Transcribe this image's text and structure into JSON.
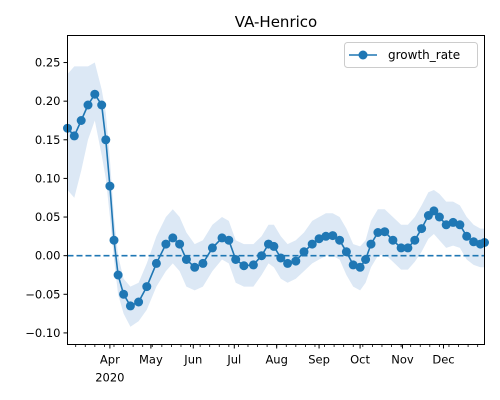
{
  "chart_data": {
    "type": "line",
    "title": "VA-Henrico",
    "xlabel": "",
    "ylabel": "",
    "x_range": [
      "2020-03-01",
      "2020-12-31"
    ],
    "ylim": [
      -0.115,
      0.285
    ],
    "y_ticks": [
      -0.1,
      -0.05,
      0.0,
      0.05,
      0.1,
      0.15,
      0.2,
      0.25
    ],
    "y_tick_labels": [
      "−0.10",
      "−0.05",
      "0.00",
      "0.05",
      "0.10",
      "0.15",
      "0.20",
      "0.25"
    ],
    "x_ticks": [
      {
        "date": "2020-04-01",
        "label": "Apr"
      },
      {
        "date": "2020-05-01",
        "label": "May"
      },
      {
        "date": "2020-06-01",
        "label": "Jun"
      },
      {
        "date": "2020-07-01",
        "label": "Jul"
      },
      {
        "date": "2020-08-01",
        "label": "Aug"
      },
      {
        "date": "2020-09-01",
        "label": "Sep"
      },
      {
        "date": "2020-10-01",
        "label": "Oct"
      },
      {
        "date": "2020-11-01",
        "label": "Nov"
      },
      {
        "date": "2020-12-01",
        "label": "Dec"
      }
    ],
    "x_year_label": "2020",
    "legend": {
      "position": "top-right"
    },
    "grid": false,
    "reference_line": {
      "y": 0.0,
      "style": "dashed",
      "color": "#1f77b4"
    },
    "series": [
      {
        "name": "growth_rate",
        "color": "#1f77b4",
        "band_color": "#dce8f5",
        "marker": "circle",
        "points": [
          {
            "x": "2020-03-01",
            "y": 0.165,
            "lo": 0.085,
            "hi": 0.235
          },
          {
            "x": "2020-03-06",
            "y": 0.155,
            "lo": 0.075,
            "hi": 0.245
          },
          {
            "x": "2020-03-11",
            "y": 0.175,
            "lo": 0.11,
            "hi": 0.245
          },
          {
            "x": "2020-03-16",
            "y": 0.195,
            "lo": 0.15,
            "hi": 0.245
          },
          {
            "x": "2020-03-21",
            "y": 0.209,
            "lo": 0.175,
            "hi": 0.25
          },
          {
            "x": "2020-03-26",
            "y": 0.195,
            "lo": 0.13,
            "hi": 0.215
          },
          {
            "x": "2020-03-29",
            "y": 0.15,
            "lo": 0.1,
            "hi": 0.185
          },
          {
            "x": "2020-04-01",
            "y": 0.09,
            "lo": 0.05,
            "hi": 0.125
          },
          {
            "x": "2020-04-04",
            "y": 0.02,
            "lo": -0.005,
            "hi": 0.05
          },
          {
            "x": "2020-04-07",
            "y": -0.025,
            "lo": -0.05,
            "hi": 0.0
          },
          {
            "x": "2020-04-11",
            "y": -0.05,
            "lo": -0.075,
            "hi": -0.03
          },
          {
            "x": "2020-04-16",
            "y": -0.065,
            "lo": -0.092,
            "hi": -0.04
          },
          {
            "x": "2020-04-22",
            "y": -0.06,
            "lo": -0.085,
            "hi": -0.035
          },
          {
            "x": "2020-04-28",
            "y": -0.04,
            "lo": -0.07,
            "hi": -0.01
          },
          {
            "x": "2020-05-05",
            "y": -0.01,
            "lo": -0.04,
            "hi": 0.025
          },
          {
            "x": "2020-05-12",
            "y": 0.015,
            "lo": -0.02,
            "hi": 0.05
          },
          {
            "x": "2020-05-17",
            "y": 0.023,
            "lo": -0.01,
            "hi": 0.06
          },
          {
            "x": "2020-05-22",
            "y": 0.015,
            "lo": -0.02,
            "hi": 0.05
          },
          {
            "x": "2020-05-27",
            "y": -0.005,
            "lo": -0.04,
            "hi": 0.03
          },
          {
            "x": "2020-06-02",
            "y": -0.015,
            "lo": -0.045,
            "hi": 0.015
          },
          {
            "x": "2020-06-08",
            "y": -0.01,
            "lo": -0.04,
            "hi": 0.02
          },
          {
            "x": "2020-06-15",
            "y": 0.01,
            "lo": -0.02,
            "hi": 0.04
          },
          {
            "x": "2020-06-22",
            "y": 0.023,
            "lo": -0.005,
            "hi": 0.05
          },
          {
            "x": "2020-06-27",
            "y": 0.02,
            "lo": -0.01,
            "hi": 0.045
          },
          {
            "x": "2020-07-02",
            "y": -0.005,
            "lo": -0.035,
            "hi": 0.02
          },
          {
            "x": "2020-07-08",
            "y": -0.013,
            "lo": -0.04,
            "hi": 0.015
          },
          {
            "x": "2020-07-15",
            "y": -0.012,
            "lo": -0.04,
            "hi": 0.015
          },
          {
            "x": "2020-07-21",
            "y": 0.0,
            "lo": -0.025,
            "hi": 0.025
          },
          {
            "x": "2020-07-26",
            "y": 0.015,
            "lo": -0.01,
            "hi": 0.04
          },
          {
            "x": "2020-07-30",
            "y": 0.012,
            "lo": -0.015,
            "hi": 0.04
          },
          {
            "x": "2020-08-04",
            "y": -0.003,
            "lo": -0.03,
            "hi": 0.025
          },
          {
            "x": "2020-08-09",
            "y": -0.01,
            "lo": -0.035,
            "hi": 0.015
          },
          {
            "x": "2020-08-15",
            "y": -0.007,
            "lo": -0.03,
            "hi": 0.02
          },
          {
            "x": "2020-08-21",
            "y": 0.005,
            "lo": -0.02,
            "hi": 0.03
          },
          {
            "x": "2020-08-27",
            "y": 0.015,
            "lo": -0.01,
            "hi": 0.045
          },
          {
            "x": "2020-09-01",
            "y": 0.022,
            "lo": -0.005,
            "hi": 0.05
          },
          {
            "x": "2020-09-06",
            "y": 0.025,
            "lo": 0.0,
            "hi": 0.055
          },
          {
            "x": "2020-09-11",
            "y": 0.026,
            "lo": 0.0,
            "hi": 0.055
          },
          {
            "x": "2020-09-16",
            "y": 0.02,
            "lo": -0.005,
            "hi": 0.05
          },
          {
            "x": "2020-09-21",
            "y": 0.005,
            "lo": -0.025,
            "hi": 0.035
          },
          {
            "x": "2020-09-26",
            "y": -0.012,
            "lo": -0.04,
            "hi": 0.015
          },
          {
            "x": "2020-10-01",
            "y": -0.015,
            "lo": -0.045,
            "hi": 0.012
          },
          {
            "x": "2020-10-05",
            "y": -0.005,
            "lo": -0.035,
            "hi": 0.02
          },
          {
            "x": "2020-10-09",
            "y": 0.015,
            "lo": -0.015,
            "hi": 0.045
          },
          {
            "x": "2020-10-14",
            "y": 0.03,
            "lo": 0.0,
            "hi": 0.06
          },
          {
            "x": "2020-10-19",
            "y": 0.031,
            "lo": 0.002,
            "hi": 0.06
          },
          {
            "x": "2020-10-25",
            "y": 0.02,
            "lo": -0.008,
            "hi": 0.05
          },
          {
            "x": "2020-10-31",
            "y": 0.01,
            "lo": -0.018,
            "hi": 0.04
          },
          {
            "x": "2020-11-05",
            "y": 0.01,
            "lo": -0.018,
            "hi": 0.04
          },
          {
            "x": "2020-11-10",
            "y": 0.02,
            "lo": -0.008,
            "hi": 0.05
          },
          {
            "x": "2020-11-15",
            "y": 0.035,
            "lo": 0.005,
            "hi": 0.065
          },
          {
            "x": "2020-11-20",
            "y": 0.052,
            "lo": 0.022,
            "hi": 0.082
          },
          {
            "x": "2020-11-24",
            "y": 0.058,
            "lo": 0.028,
            "hi": 0.085
          },
          {
            "x": "2020-11-28",
            "y": 0.05,
            "lo": 0.02,
            "hi": 0.08
          },
          {
            "x": "2020-12-03",
            "y": 0.04,
            "lo": 0.01,
            "hi": 0.07
          },
          {
            "x": "2020-12-08",
            "y": 0.043,
            "lo": 0.013,
            "hi": 0.07
          },
          {
            "x": "2020-12-13",
            "y": 0.04,
            "lo": 0.01,
            "hi": 0.065
          },
          {
            "x": "2020-12-18",
            "y": 0.025,
            "lo": -0.005,
            "hi": 0.05
          },
          {
            "x": "2020-12-23",
            "y": 0.018,
            "lo": -0.012,
            "hi": 0.04
          },
          {
            "x": "2020-12-28",
            "y": 0.015,
            "lo": -0.015,
            "hi": 0.035
          },
          {
            "x": "2020-12-31",
            "y": 0.017,
            "lo": -0.015,
            "hi": 0.035
          }
        ]
      }
    ]
  }
}
